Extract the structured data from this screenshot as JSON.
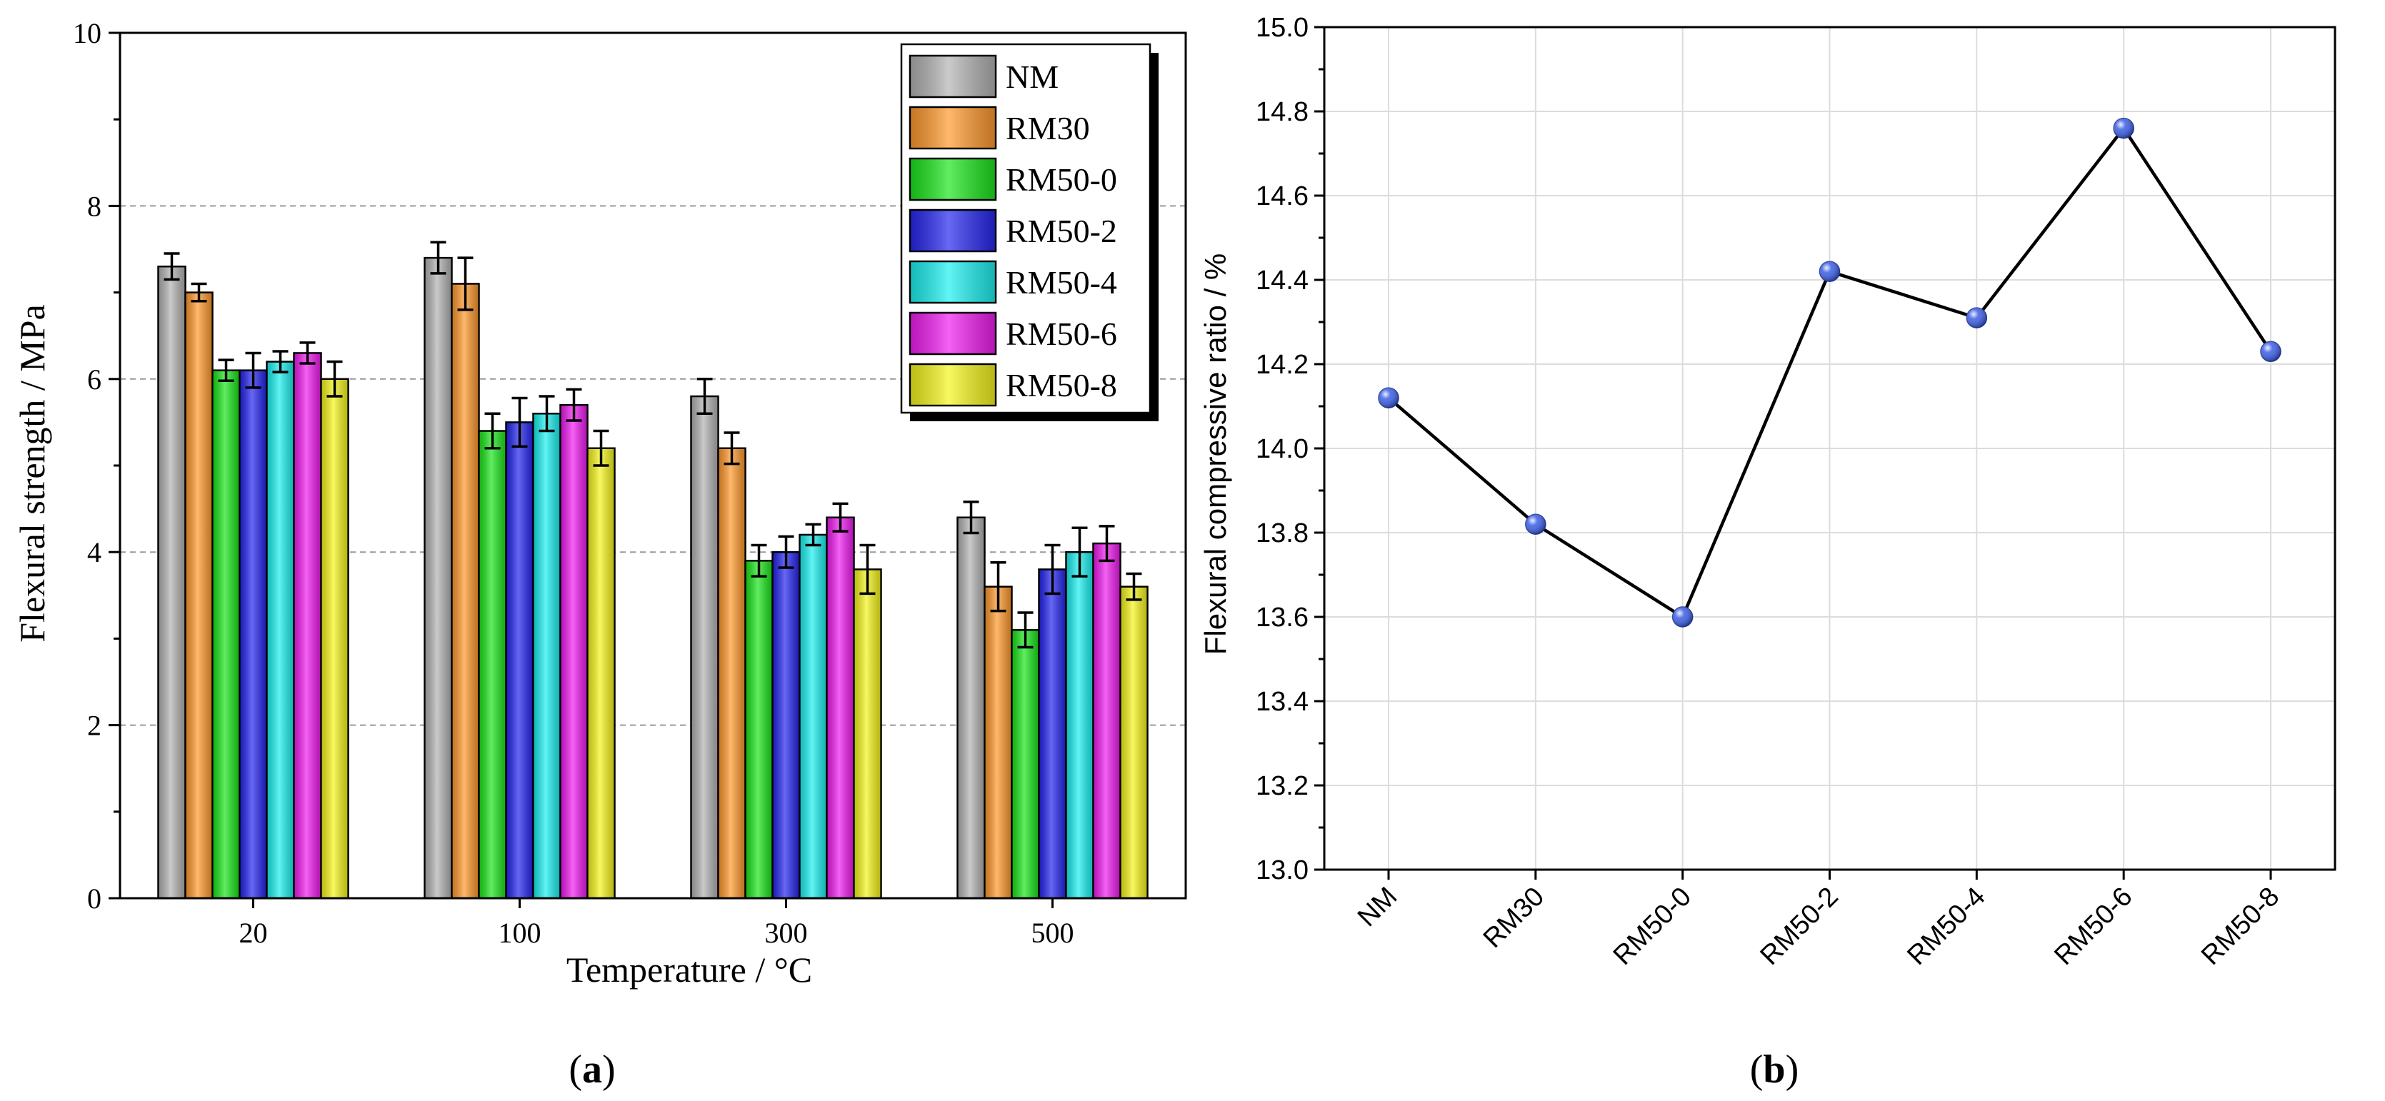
{
  "chart_data": [
    {
      "type": "bar",
      "title": "",
      "panel_label_text": "a",
      "xlabel": "Temperature / °C",
      "ylabel": "Flexural strength / MPa",
      "categories": [
        "20",
        "100",
        "300",
        "500"
      ],
      "ylim": [
        0,
        10
      ],
      "yticks": [
        "0",
        "2",
        "4",
        "6",
        "8",
        "10"
      ],
      "grid": "horizontal dashed",
      "legend_position": "top-right",
      "series": [
        {
          "name": "NM",
          "color": "#b4b4b4",
          "values": [
            7.3,
            7.4,
            5.8,
            4.4
          ],
          "errors": [
            0.15,
            0.18,
            0.2,
            0.18
          ]
        },
        {
          "name": "RM30",
          "color": "#ff9a2e",
          "values": [
            7.0,
            7.1,
            5.2,
            3.6
          ],
          "errors": [
            0.1,
            0.3,
            0.18,
            0.28
          ]
        },
        {
          "name": "RM50-0",
          "color": "#1ee61e",
          "values": [
            6.1,
            5.4,
            3.9,
            3.1
          ],
          "errors": [
            0.12,
            0.2,
            0.18,
            0.2
          ]
        },
        {
          "name": "RM50-2",
          "color": "#2828f0",
          "values": [
            6.1,
            5.5,
            4.0,
            3.8
          ],
          "errors": [
            0.2,
            0.28,
            0.18,
            0.28
          ]
        },
        {
          "name": "RM50-4",
          "color": "#1ef0f0",
          "values": [
            6.2,
            5.6,
            4.2,
            4.0
          ],
          "errors": [
            0.12,
            0.2,
            0.12,
            0.28
          ]
        },
        {
          "name": "RM50-6",
          "color": "#f01ef0",
          "values": [
            6.3,
            5.7,
            4.4,
            4.1
          ],
          "errors": [
            0.12,
            0.18,
            0.16,
            0.2
          ]
        },
        {
          "name": "RM50-8",
          "color": "#f5f51e",
          "values": [
            6.0,
            5.2,
            3.8,
            3.6
          ],
          "errors": [
            0.2,
            0.2,
            0.28,
            0.15
          ]
        }
      ]
    },
    {
      "type": "line",
      "title": "",
      "panel_label_text": "b",
      "xlabel": "",
      "ylabel": "Flexural compressive ratio / %",
      "categories": [
        "NM",
        "RM30",
        "RM50-0",
        "RM50-2",
        "RM50-4",
        "RM50-6",
        "RM50-8"
      ],
      "ylim": [
        13.0,
        15.0
      ],
      "yticks": [
        "13.0",
        "13.2",
        "13.4",
        "13.6",
        "13.8",
        "14.0",
        "14.2",
        "14.4",
        "14.6",
        "14.8",
        "15.0"
      ],
      "grid": "on",
      "marker_color": "#3a5ee6",
      "line_color": "#000000",
      "series": [
        {
          "values": [
            14.12,
            13.82,
            13.6,
            14.42,
            14.31,
            14.76,
            14.23
          ]
        }
      ]
    }
  ]
}
